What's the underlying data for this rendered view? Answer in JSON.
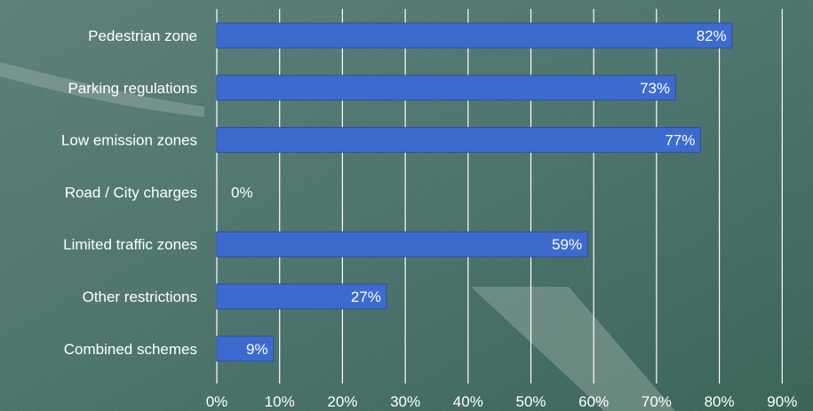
{
  "colors": {
    "bar_fill": "#3c6bd0",
    "bar_stroke": "#2a4f9e",
    "gridline": "#ffffff",
    "text": "#ffffff",
    "background": "#3d665c"
  },
  "chart_data": {
    "type": "bar",
    "orientation": "horizontal",
    "categories": [
      "Pedestrian zone",
      "Parking regulations",
      "Low emission zones",
      "Road / City charges",
      "Limited traffic zones",
      "Other restrictions",
      "Combined schemes"
    ],
    "values": [
      82,
      73,
      77,
      0,
      59,
      27,
      9
    ],
    "value_labels": [
      "82%",
      "73%",
      "77%",
      "0%",
      "59%",
      "27%",
      "9%"
    ],
    "xlim": [
      0,
      90
    ],
    "x_ticks": [
      0,
      10,
      20,
      30,
      40,
      50,
      60,
      70,
      80,
      90
    ],
    "x_tick_labels": [
      "0%",
      "10%",
      "20%",
      "30%",
      "40%",
      "50%",
      "60%",
      "70%",
      "80%",
      "90%"
    ],
    "grid": true,
    "legend": "none"
  }
}
